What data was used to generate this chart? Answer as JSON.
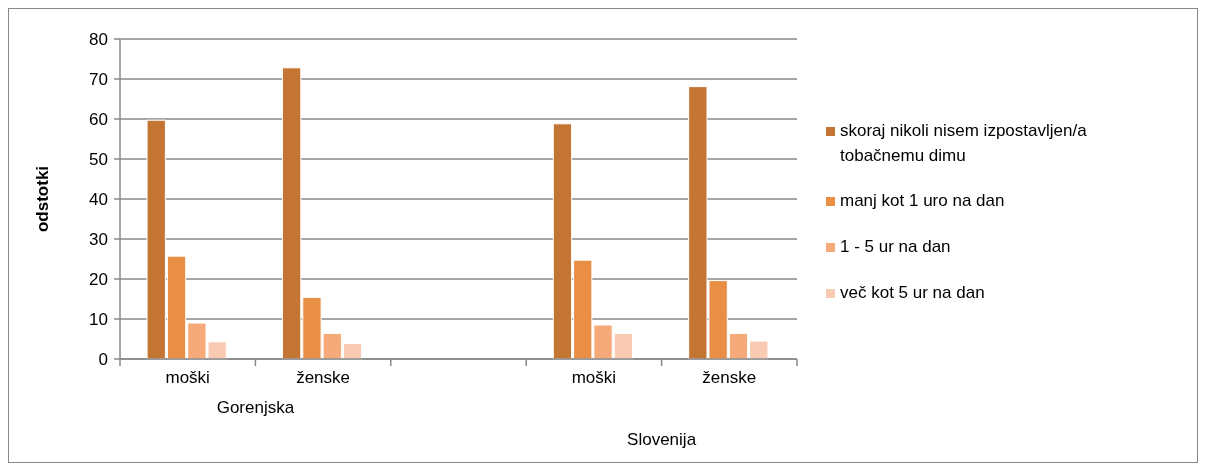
{
  "chart_data": {
    "type": "bar",
    "ylabel": "odstotki",
    "categories": [
      "moški",
      "ženske",
      null,
      "moški",
      "ženske"
    ],
    "annotations": [
      "Gorenjska",
      "Slovenija"
    ],
    "series": [
      {
        "name": "skoraj nikoli nisem izpostavljen/a tobačnemu dimu",
        "color": "#c47534",
        "values": [
          59.7,
          72.8,
          null,
          58.8,
          68.1
        ]
      },
      {
        "name": "manj kot 1 uro na dan",
        "color": "#e88e45",
        "values": [
          25.7,
          15.4,
          null,
          24.7,
          19.6
        ]
      },
      {
        "name": "1 - 5 ur na dan",
        "color": "#f7aa79",
        "values": [
          9.0,
          6.4,
          null,
          8.5,
          6.4
        ]
      },
      {
        "name": "več kot 5 ur na dan",
        "color": "#f8cbb2",
        "values": [
          4.3,
          3.9,
          null,
          6.4,
          4.5
        ]
      }
    ],
    "ylim": [
      0,
      80
    ],
    "yticks": [
      0,
      10,
      20,
      30,
      40,
      50,
      60,
      70,
      80
    ],
    "grid": "y",
    "legend": "right"
  }
}
